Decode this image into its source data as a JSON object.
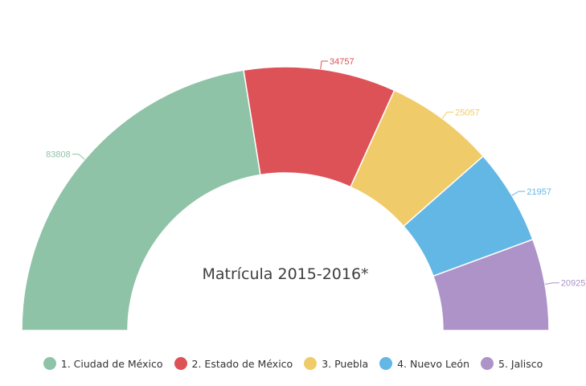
{
  "chart_data": {
    "type": "pie",
    "variant": "semicircle-donut",
    "title": "Matrícula 2015-2016*",
    "categories": [
      "1. Ciudad de México",
      "2. Estado de México",
      "3. Puebla",
      "4. Nuevo León",
      "5. Jalisco"
    ],
    "values": [
      83808,
      34757,
      25057,
      21957,
      20925
    ],
    "value_labels": [
      "83808",
      "34757",
      "25057",
      "21957",
      "20925"
    ],
    "colors": [
      "#8fc3a7",
      "#dc5257",
      "#f0cb69",
      "#62b7e5",
      "#ad93c8"
    ],
    "legend_position": "bottom"
  }
}
